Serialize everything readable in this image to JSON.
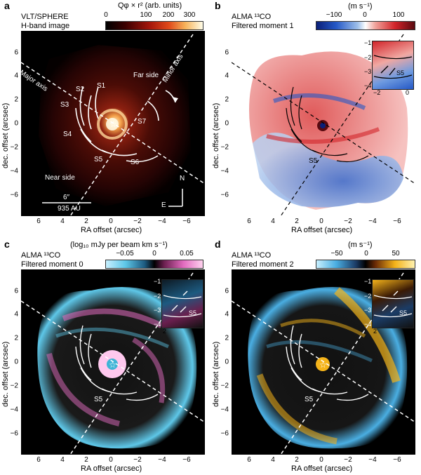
{
  "figure": {
    "panels": [
      {
        "letter": "a",
        "title_line1": "VLT/SPHERE",
        "title_line2": "H-band image",
        "colorbar": {
          "title": "Qφ × r² (arb. units)",
          "ticks": [
            "0",
            "100",
            "200",
            "300"
          ]
        },
        "labels": {
          "major": "Major axis",
          "minor": "Minor axis",
          "far": "Far side",
          "near": "Near side",
          "s1": "S1",
          "s2": "S2",
          "s3": "S3",
          "s4": "S4",
          "s5": "S5",
          "s6": "S6",
          "s7": "S7",
          "n": "N",
          "e": "E",
          "scale_angle": "6″",
          "scale_au": "935 AU"
        }
      },
      {
        "letter": "b",
        "title_line1": "ALMA ¹³CO",
        "title_line2": "Filtered moment 1",
        "colorbar": {
          "title": "(m s⁻¹)",
          "ticks": [
            "−100",
            "0",
            "100"
          ]
        },
        "labels": {
          "s5": "S5"
        },
        "inset": {
          "x_ticks": [
            "−2",
            "0"
          ],
          "y_ticks": [
            "−1",
            "−2",
            "−3",
            "−4"
          ],
          "s5": "S5"
        }
      },
      {
        "letter": "c",
        "title_line1": "ALMA ¹³CO",
        "title_line2": "Filtered moment 0",
        "colorbar": {
          "title": "(log₁₀ mJy per beam km s⁻¹)",
          "ticks": [
            "−0.05",
            "0",
            "0.05"
          ]
        },
        "labels": {
          "s5": "S5"
        },
        "inset": {
          "x_ticks": [
            "2",
            "0"
          ],
          "y_ticks": [
            "−1",
            "−2",
            "−3",
            "−4"
          ],
          "s5": "S5"
        }
      },
      {
        "letter": "d",
        "title_line1": "ALMA ¹³CO",
        "title_line2": "Filtered moment 2",
        "colorbar": {
          "title": "(m s⁻¹)",
          "ticks": [
            "−50",
            "0",
            "50"
          ]
        },
        "labels": {
          "s5": "S5"
        },
        "inset": {
          "x_ticks": [
            "2",
            "0"
          ],
          "y_ticks": [
            "−1",
            "−2",
            "−3",
            "−4"
          ],
          "s5": "S5"
        }
      }
    ],
    "axes": {
      "xlabel": "RA offset (arcsec)",
      "ylabel": "dec. offset (arcsec)",
      "x_ticks": [
        "6",
        "4",
        "2",
        "0",
        "−2",
        "−4",
        "−6"
      ],
      "y_ticks": [
        "6",
        "4",
        "2",
        "0",
        "−2",
        "−4",
        "−6"
      ]
    },
    "colors": {
      "panel_a_map": "#2a0505",
      "panel_b_pos": "#d2242a",
      "panel_b_neg": "#2458c6",
      "panel_c_pos": "#e26bbf",
      "panel_c_neg": "#5ec7e8",
      "panel_d_pos": "#f4b31a",
      "panel_d_neg": "#4aaee2"
    }
  }
}
